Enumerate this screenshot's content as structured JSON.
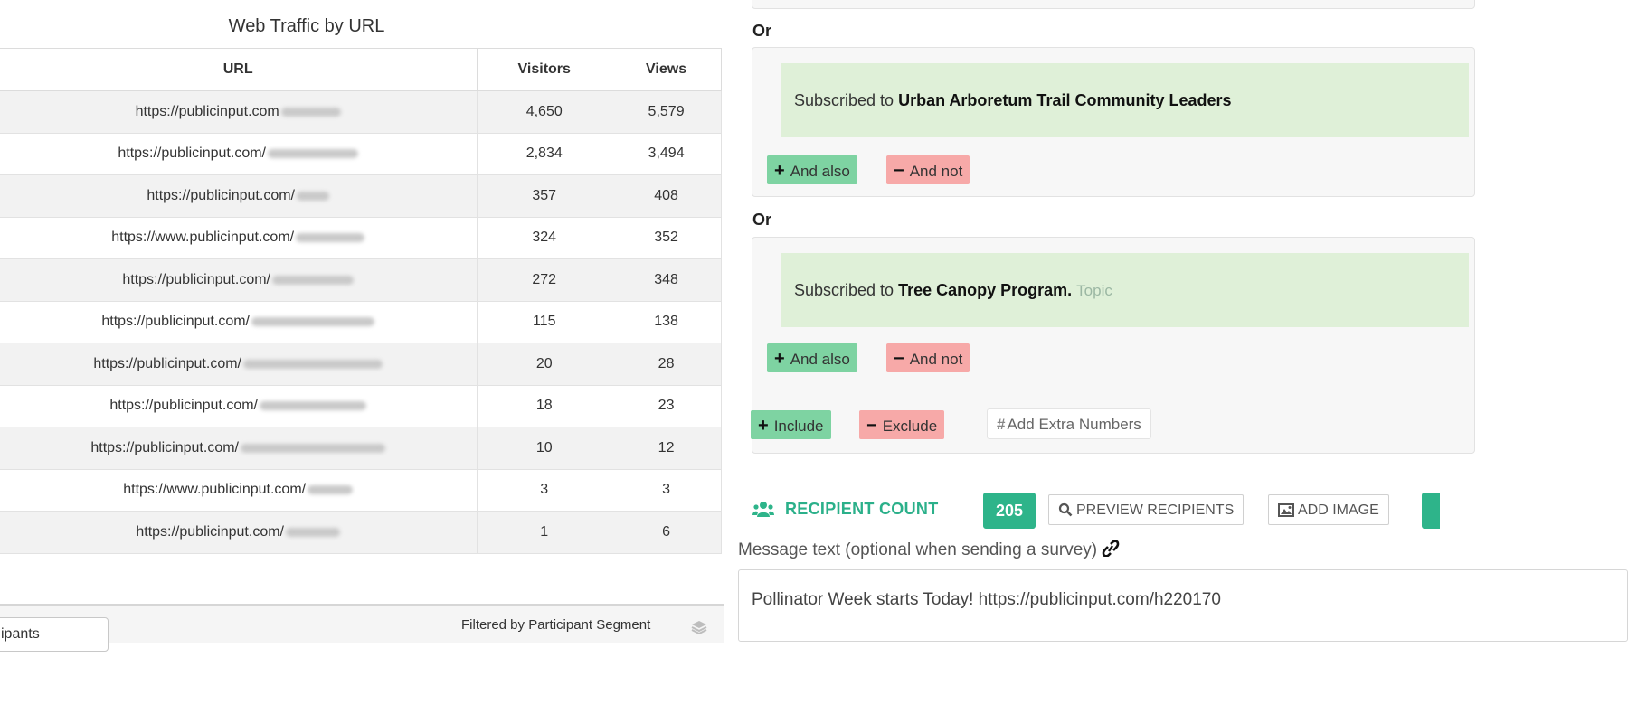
{
  "traffic": {
    "title": "Web Traffic by URL",
    "columns": [
      "URL",
      "Visitors",
      "Views"
    ],
    "rows": [
      {
        "url": "https://publicinput.com",
        "visitors": "4,650",
        "views": "5,579"
      },
      {
        "url": "https://publicinput.com/",
        "visitors": "2,834",
        "views": "3,494"
      },
      {
        "url": "https://publicinput.com/",
        "visitors": "357",
        "views": "408"
      },
      {
        "url": "https://www.publicinput.com/",
        "visitors": "324",
        "views": "352"
      },
      {
        "url": "https://publicinput.com/",
        "visitors": "272",
        "views": "348"
      },
      {
        "url": "https://publicinput.com/",
        "visitors": "115",
        "views": "138"
      },
      {
        "url": "https://publicinput.com/",
        "visitors": "20",
        "views": "28"
      },
      {
        "url": "https://publicinput.com/",
        "visitors": "18",
        "views": "23"
      },
      {
        "url": "https://publicinput.com/",
        "visitors": "10",
        "views": "12"
      },
      {
        "url": "https://www.publicinput.com/",
        "visitors": "3",
        "views": "3"
      },
      {
        "url": "https://publicinput.com/",
        "visitors": "1",
        "views": "6"
      }
    ],
    "segment_select_value": "ipants",
    "filtered_by": "Filtered by Participant Segment"
  },
  "audience": {
    "or_label": "Or",
    "prefix": "Subscribed to",
    "conditions": [
      {
        "name": "Urban Arboretum Trail Community Leaders",
        "tag": ""
      },
      {
        "name": "Tree Canopy Program.",
        "tag": "Topic"
      }
    ],
    "and_also": "And also",
    "and_not": "And not",
    "include": "Include",
    "exclude": "Exclude",
    "add_extra_numbers": "Add Extra Numbers"
  },
  "recipients": {
    "label": "RECIPIENT COUNT",
    "count": "205",
    "preview": "PREVIEW RECIPIENTS",
    "add_image": "ADD IMAGE"
  },
  "message": {
    "label": "Message text (optional when sending a survey)",
    "text": "Pollinator Week starts Today! https://publicinput.com/h220170"
  },
  "colors": {
    "accent_green": "#2eb48a",
    "condition_bg": "#dff0d8",
    "include_green": "#7ed3a2",
    "exclude_red": "#f7a9a8"
  }
}
